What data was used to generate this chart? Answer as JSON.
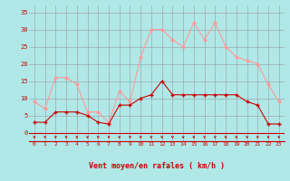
{
  "x": [
    0,
    1,
    2,
    3,
    4,
    5,
    6,
    7,
    8,
    9,
    10,
    11,
    12,
    13,
    14,
    15,
    16,
    17,
    18,
    19,
    20,
    21,
    22,
    23
  ],
  "rafales": [
    9,
    7,
    16,
    16,
    14,
    6,
    6,
    3,
    12,
    9,
    22,
    30,
    30,
    27,
    25,
    32,
    27,
    32,
    25,
    22,
    21,
    20,
    14,
    9
  ],
  "moyen": [
    3,
    3,
    6,
    6,
    6,
    5,
    3,
    2.5,
    8,
    8,
    10,
    11,
    15,
    11,
    11,
    11,
    11,
    11,
    11,
    11,
    9,
    8,
    2.5,
    2.5
  ],
  "bg_color": "#b0e8e8",
  "grid_color": "#999999",
  "line_color_rafales": "#ff9999",
  "line_color_moyen": "#cc0000",
  "marker_color_rafales": "#ff9999",
  "marker_color_moyen": "#cc0000",
  "xlabel": "Vent moyen/en rafales ( km/h )",
  "ylabel_ticks": [
    0,
    5,
    10,
    15,
    20,
    25,
    30,
    35
  ],
  "ylim": [
    -2.5,
    37
  ],
  "xlim": [
    -0.5,
    23.5
  ],
  "arrow_color": "#cc0000",
  "xlabel_color": "#cc0000",
  "tick_color": "#cc0000"
}
